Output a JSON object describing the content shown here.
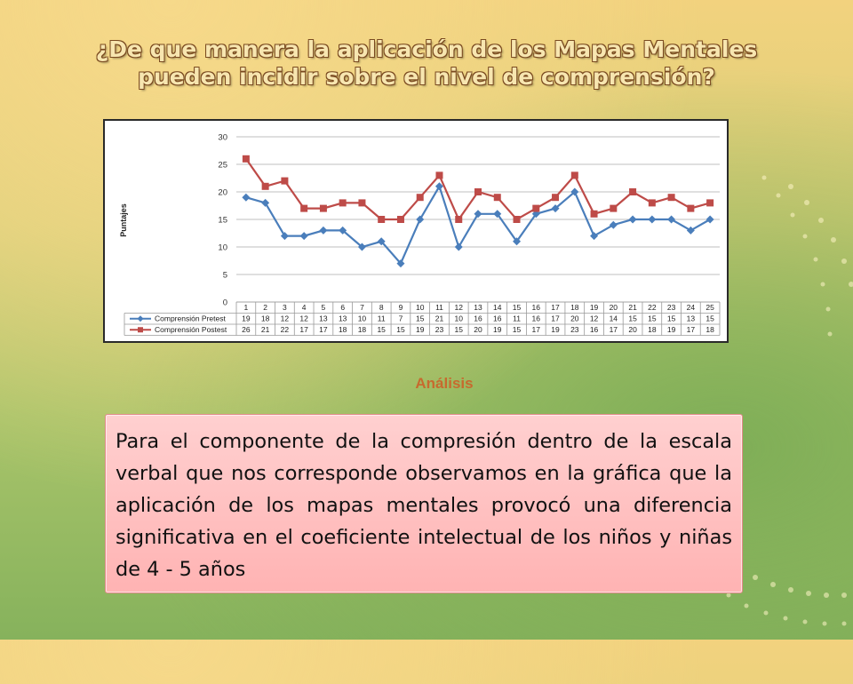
{
  "slide": {
    "title_line1": "¿De que manera la aplicación de los Mapas Mentales",
    "title_line2": "pueden incidir sobre el nivel de comprensión?",
    "analysis_heading": "Análisis",
    "body_text": "Para el componente de la compresión dentro de la escala verbal que nos corresponde observamos en la gráfica que la aplicación de los mapas mentales provocó una diferencia significativa en el coeficiente intelectual de los niños y niñas de 4 - 5  años"
  },
  "chart_data": {
    "type": "line",
    "ylabel": "Puntajes",
    "xlabel": "",
    "ylim": [
      0,
      30
    ],
    "yticks": [
      0,
      5,
      10,
      15,
      20,
      25,
      30
    ],
    "grid": true,
    "legend": "bottom data table",
    "categories": [
      "1",
      "2",
      "3",
      "4",
      "5",
      "6",
      "7",
      "8",
      "9",
      "10",
      "11",
      "12",
      "13",
      "14",
      "15",
      "16",
      "17",
      "18",
      "19",
      "20",
      "21",
      "22",
      "23",
      "24",
      "25"
    ],
    "series": [
      {
        "name": "Comprensión Pretest",
        "color": "#4a7ebb",
        "marker": "diamond",
        "values": [
          19,
          18,
          12,
          12,
          13,
          13,
          10,
          11,
          7,
          15,
          21,
          10,
          16,
          16,
          11,
          16,
          17,
          20,
          12,
          14,
          15,
          15,
          15,
          13,
          15
        ]
      },
      {
        "name": "Comprensión Postest",
        "color": "#be4b48",
        "marker": "square",
        "values": [
          26,
          21,
          22,
          17,
          17,
          18,
          18,
          15,
          15,
          19,
          23,
          15,
          20,
          19,
          15,
          17,
          19,
          23,
          16,
          17,
          20,
          18,
          19,
          17,
          18
        ]
      }
    ]
  }
}
